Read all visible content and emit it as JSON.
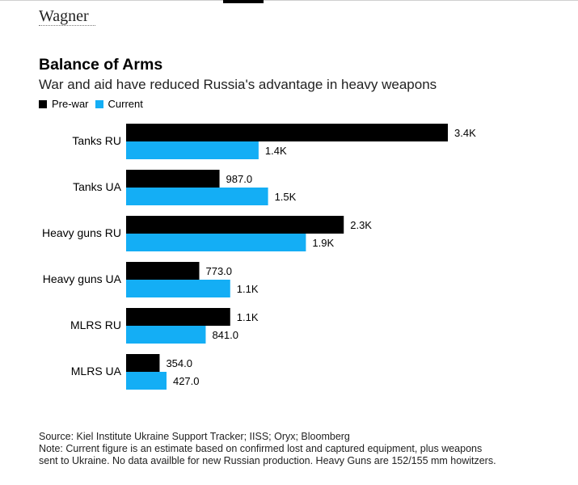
{
  "header": {
    "section_label": "Wagner"
  },
  "chart_data": {
    "type": "bar",
    "orientation": "horizontal",
    "title": "Balance of Arms",
    "subtitle": "War and aid have reduced Russia's advantage in heavy weapons",
    "categories": [
      "Tanks RU",
      "Tanks UA",
      "Heavy guns RU",
      "Heavy guns UA",
      "MLRS RU",
      "MLRS UA"
    ],
    "series": [
      {
        "name": "Pre-war",
        "color": "#000000",
        "values": [
          3400,
          987,
          2300,
          773,
          1100,
          354
        ],
        "labels": [
          "3.4K",
          "987.0",
          "2.3K",
          "773.0",
          "1.1K",
          "354.0"
        ]
      },
      {
        "name": "Current",
        "color": "#14AEF5",
        "values": [
          1400,
          1500,
          1900,
          1100,
          841,
          427
        ],
        "labels": [
          "1.4K",
          "1.5K",
          "1.9K",
          "1.1K",
          "841.0",
          "427.0"
        ]
      }
    ],
    "xlim": [
      0,
      3400
    ],
    "grid": false,
    "legend": "top-left"
  },
  "footer": {
    "source": "Source: Kiel Institute Ukraine Support Tracker; IISS; Oryx; Bloomberg",
    "note_line1": "Note: Current figure is an estimate based on confirmed lost and captured equipment, plus weapons",
    "note_line2": "sent to Ukraine. No data availble for new Russian production. Heavy Guns are 152/155 mm howitzers."
  }
}
